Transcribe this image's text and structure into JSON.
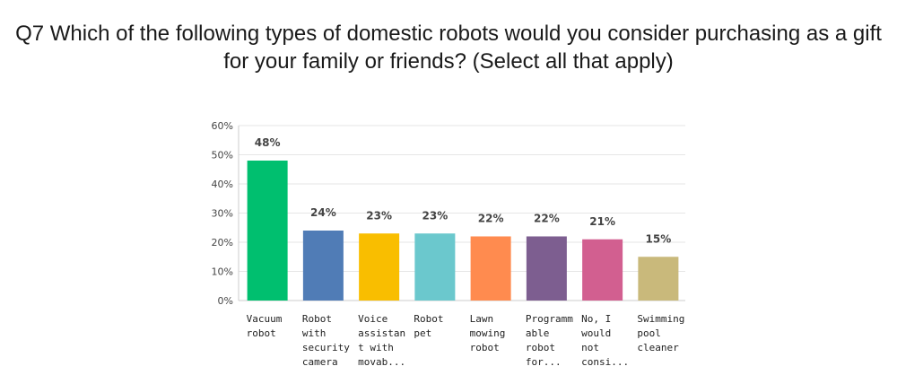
{
  "title_lines": [
    "Q7 Which of the following types of domestic robots would you consider purchasing as a gift",
    "for your family or friends? (Select all that apply)"
  ],
  "chart_data": {
    "type": "bar",
    "categories": [
      [
        "Vacuum",
        "robot"
      ],
      [
        "Robot",
        "with",
        "security",
        "camera"
      ],
      [
        "Voice",
        "assistan",
        "t with",
        "movab..."
      ],
      [
        "Robot",
        "pet"
      ],
      [
        "Lawn",
        "mowing",
        "robot"
      ],
      [
        "Programm",
        "able",
        "robot",
        "for..."
      ],
      [
        "No, I",
        "would",
        "not",
        "consi..."
      ],
      [
        "Swimming",
        "pool",
        "cleaner"
      ]
    ],
    "values": [
      48,
      24,
      23,
      23,
      22,
      22,
      21,
      15
    ],
    "value_labels": [
      "48%",
      "24%",
      "23%",
      "23%",
      "22%",
      "22%",
      "21%",
      "15%"
    ],
    "colors": [
      "#00bf6f",
      "#507cb6",
      "#f9be00",
      "#6bc8cd",
      "#ff8b4f",
      "#7d5e90",
      "#d25f90",
      "#c9b97b"
    ],
    "ylim": [
      0,
      60
    ],
    "yticks": [
      0,
      10,
      20,
      30,
      40,
      50,
      60
    ],
    "ytick_labels": [
      "0%",
      "10%",
      "20%",
      "30%",
      "40%",
      "50%",
      "60%"
    ],
    "grid": true
  }
}
